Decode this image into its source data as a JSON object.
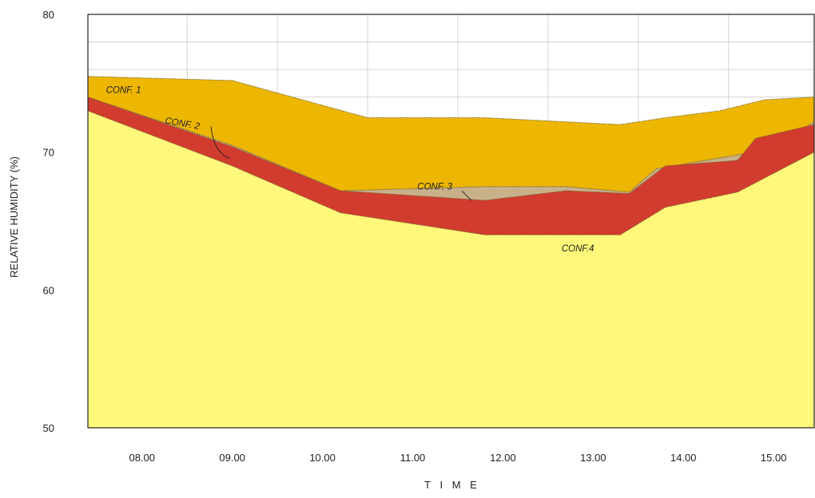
{
  "chart_data": {
    "type": "area",
    "xlabel": "T I M E",
    "ylabel": "RELATIVE HUMIDITY  (%)",
    "ylim": [
      50,
      80
    ],
    "xlim": [
      7.4,
      15.45
    ],
    "y_ticks": [
      50,
      60,
      70,
      80
    ],
    "x_ticks": [
      8,
      9,
      10,
      11,
      12,
      13,
      14,
      15
    ],
    "x_tick_labels": [
      "08.00",
      "09.00",
      "10.00",
      "11.00",
      "12.00",
      "13.00",
      "14.00",
      "15.00"
    ],
    "grid": true,
    "series": [
      {
        "name": "CONF. 1",
        "color": "#EDB600",
        "x": [
          7.4,
          9.0,
          10.5,
          11.8,
          13.3,
          13.8,
          14.4,
          14.9,
          15.45
        ],
        "y": [
          75.5,
          75.2,
          72.5,
          72.5,
          72.0,
          72.5,
          73.0,
          73.8,
          74.0
        ]
      },
      {
        "name": "CONF. 2",
        "color": "#C8B08A",
        "x": [
          7.4,
          9.0,
          10.2,
          11.8,
          12.7,
          13.4,
          13.7,
          14.6,
          14.9,
          15.45
        ],
        "y": [
          74.0,
          70.5,
          67.2,
          67.5,
          67.5,
          67.1,
          68.8,
          69.8,
          70.1,
          72.2
        ]
      },
      {
        "name": "CONF. 3",
        "color": "#D23C2E",
        "x": [
          7.4,
          9.0,
          10.2,
          11.8,
          12.7,
          13.4,
          13.8,
          14.6,
          14.8,
          15.45
        ],
        "y": [
          74.0,
          70.4,
          67.2,
          66.5,
          67.2,
          67.0,
          69.0,
          69.4,
          71.0,
          72.0
        ]
      },
      {
        "name": "CONF.4",
        "color": "#FFF87A",
        "x": [
          7.4,
          9.0,
          10.2,
          11.8,
          12.7,
          13.3,
          13.8,
          14.6,
          15.45
        ],
        "y": [
          73.0,
          69.0,
          65.6,
          64.0,
          64.0,
          64.0,
          66.0,
          67.1,
          70.0
        ]
      }
    ],
    "annotations": [
      {
        "text": "CONF. 1",
        "x": 7.6,
        "y": 74.3
      },
      {
        "text": "CONF. 2",
        "x": 8.25,
        "y": 72.1
      },
      {
        "text": "CONF. 3",
        "x": 11.05,
        "y": 67.3
      },
      {
        "text": "CONF.4",
        "x": 12.65,
        "y": 62.8
      }
    ]
  }
}
